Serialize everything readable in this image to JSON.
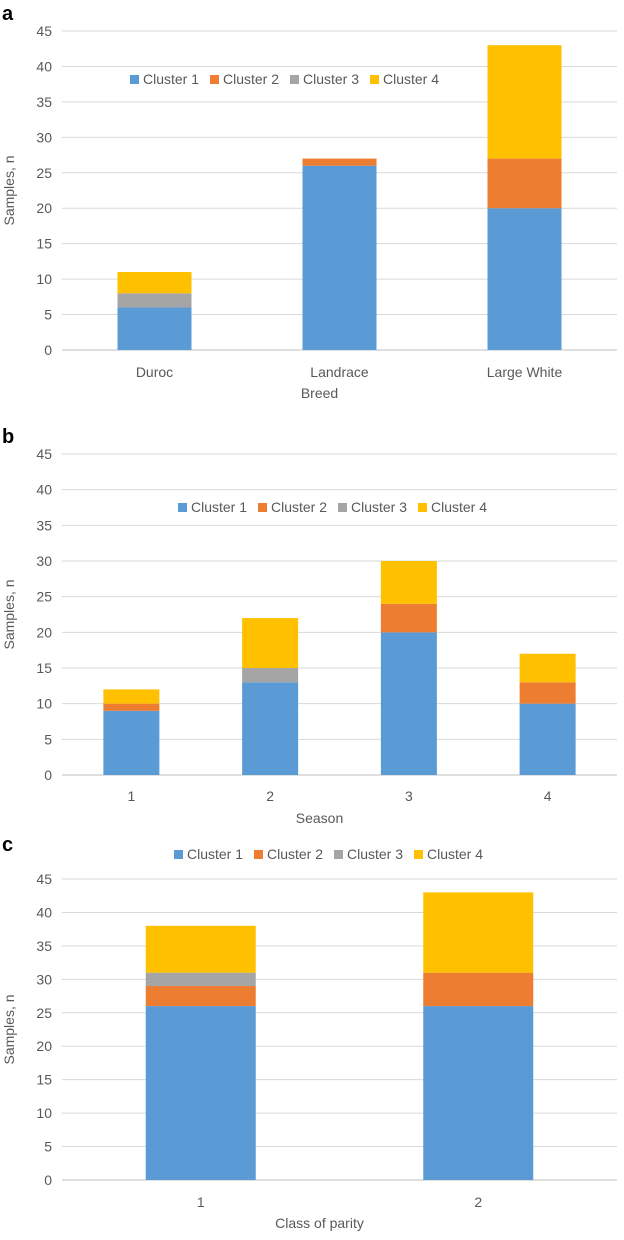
{
  "colors": {
    "Cluster 1": "#5b9bd5",
    "Cluster 2": "#ed7d31",
    "Cluster 3": "#a5a5a5",
    "Cluster 4": "#ffc000"
  },
  "chart_data": [
    {
      "type": "bar",
      "stacked": true,
      "panel": "a",
      "categories": [
        "Duroc",
        "Landrace",
        "Large White"
      ],
      "series": [
        {
          "name": "Cluster 1",
          "values": [
            6,
            26,
            20
          ]
        },
        {
          "name": "Cluster 2",
          "values": [
            0,
            1,
            7
          ]
        },
        {
          "name": "Cluster 3",
          "values": [
            2,
            0,
            0
          ]
        },
        {
          "name": "Cluster 4",
          "values": [
            3,
            0,
            16
          ]
        }
      ],
      "xlabel": "Breed",
      "ylabel": "Samples, n",
      "ylim": [
        0,
        45
      ],
      "ytick_step": 5,
      "grid": true,
      "legend": "top-center inside plot"
    },
    {
      "type": "bar",
      "stacked": true,
      "panel": "b",
      "categories": [
        "1",
        "2",
        "3",
        "4"
      ],
      "series": [
        {
          "name": "Cluster 1",
          "values": [
            9,
            13,
            20,
            10
          ]
        },
        {
          "name": "Cluster 2",
          "values": [
            1,
            0,
            4,
            3
          ]
        },
        {
          "name": "Cluster 3",
          "values": [
            0,
            2,
            0,
            0
          ]
        },
        {
          "name": "Cluster 4",
          "values": [
            2,
            7,
            6,
            4
          ]
        }
      ],
      "xlabel": "Season",
      "ylabel": "Samples, n",
      "ylim": [
        0,
        45
      ],
      "ytick_step": 5,
      "grid": true,
      "legend": "top-center inside plot"
    },
    {
      "type": "bar",
      "stacked": true,
      "panel": "c",
      "categories": [
        "1",
        "2"
      ],
      "series": [
        {
          "name": "Cluster 1",
          "values": [
            26,
            26
          ]
        },
        {
          "name": "Cluster 2",
          "values": [
            3,
            5
          ]
        },
        {
          "name": "Cluster 3",
          "values": [
            2,
            0
          ]
        },
        {
          "name": "Cluster 4",
          "values": [
            7,
            12
          ]
        }
      ],
      "xlabel": "Class of parity",
      "ylabel": "Samples, n",
      "ylim": [
        0,
        45
      ],
      "ytick_step": 5,
      "grid": true,
      "legend": "top-center above plot"
    }
  ]
}
